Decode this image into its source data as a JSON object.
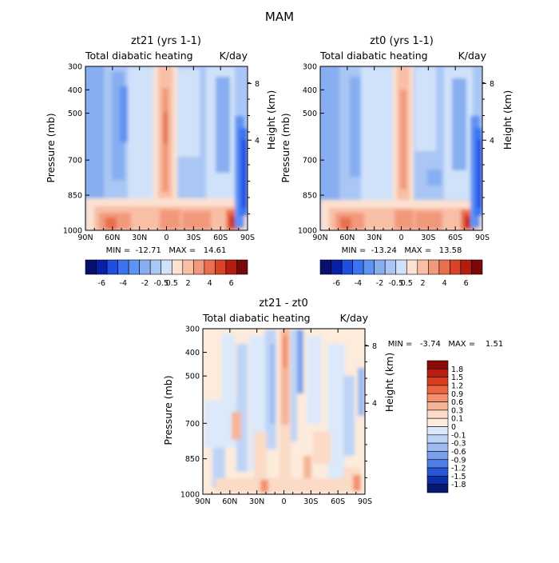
{
  "figure_title": "MAM",
  "chart_data": [
    {
      "type": "heatmap",
      "title": "zt21 (yrs 1-1)",
      "subtitle_left": "Total diabatic heating",
      "subtitle_right": "K/day",
      "xlabel": "",
      "ylabel": "Pressure (mb)",
      "ylabel_right": "Height (km)",
      "x_ticks": [
        "90N",
        "60N",
        "30N",
        "0",
        "30S",
        "60S",
        "90S"
      ],
      "y_ticks": [
        "300",
        "400",
        "500",
        "700",
        "850",
        "1000"
      ],
      "y_right_ticks": [
        "8",
        "4"
      ],
      "xlim": [
        90,
        -90
      ],
      "ylim": [
        1000,
        300
      ],
      "min_max_text": "MIN =  -12.71   MAX =   14.61",
      "min": -12.71,
      "max": 14.61,
      "colorbar_labels": [
        "-6",
        "-4",
        "-2",
        "-0.5",
        "0.5",
        "2",
        "4",
        "6"
      ]
    },
    {
      "type": "heatmap",
      "title": "zt0 (yrs 1-1)",
      "subtitle_left": "Total diabatic heating",
      "subtitle_right": "K/day",
      "xlabel": "",
      "ylabel": "Pressure (mb)",
      "ylabel_right": "Height (km)",
      "x_ticks": [
        "90N",
        "60N",
        "30N",
        "0",
        "30S",
        "60S",
        "90S"
      ],
      "y_ticks": [
        "300",
        "400",
        "500",
        "700",
        "850",
        "1000"
      ],
      "y_right_ticks": [
        "8",
        "4"
      ],
      "xlim": [
        90,
        -90
      ],
      "ylim": [
        1000,
        300
      ],
      "min_max_text": "MIN =  -13.24   MAX =   13.58",
      "min": -13.24,
      "max": 13.58,
      "colorbar_labels": [
        "-6",
        "-4",
        "-2",
        "-0.5",
        "0.5",
        "2",
        "4",
        "6"
      ]
    },
    {
      "type": "heatmap",
      "title": "zt21 - zt0",
      "subtitle_left": "Total diabatic heating",
      "subtitle_right": "K/day",
      "xlabel": "",
      "ylabel": "Pressure (mb)",
      "ylabel_right": "Height (km)",
      "x_ticks": [
        "90N",
        "60N",
        "30N",
        "0",
        "30S",
        "60S",
        "90S"
      ],
      "y_ticks": [
        "300",
        "400",
        "500",
        "700",
        "850",
        "1000"
      ],
      "y_right_ticks": [
        "8",
        "4"
      ],
      "xlim": [
        90,
        -90
      ],
      "ylim": [
        1000,
        300
      ],
      "min_max_text": "MIN =   -3.74   MAX =    1.51",
      "min": -3.74,
      "max": 1.51,
      "colorbar_labels": [
        "1.8",
        "1.5",
        "1.2",
        "0.9",
        "0.6",
        "0.3",
        "0.1",
        "0",
        "-0.1",
        "-0.3",
        "-0.6",
        "-0.9",
        "-1.2",
        "-1.5",
        "-1.8"
      ]
    }
  ],
  "palettes": {
    "top": [
      "#08106e",
      "#0a1fa8",
      "#1f4ee0",
      "#3b74f0",
      "#5e93f2",
      "#86aef0",
      "#a9c6f5",
      "#d0e2fa",
      "#fbe1d1",
      "#f8bfa6",
      "#f2997c",
      "#ea6f4e",
      "#d94428",
      "#b51c10",
      "#7a0808"
    ],
    "diff": [
      "#8c0a0a",
      "#b81d11",
      "#d93f1f",
      "#ec6543",
      "#f3916e",
      "#f6b497",
      "#fbdac6",
      "#fdebdc",
      "#dbe9fb",
      "#bdd4f7",
      "#9dbbf1",
      "#7aa0eb",
      "#4f7fe6",
      "#2655d9",
      "#0c2fa8",
      "#061a72"
    ]
  }
}
